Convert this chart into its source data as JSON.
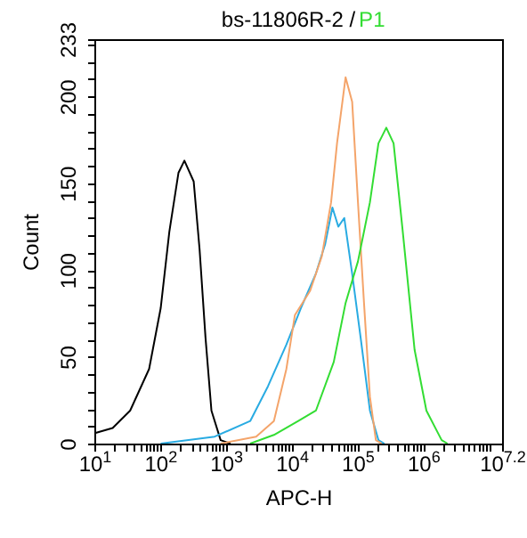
{
  "chart_data": {
    "type": "line",
    "title": "bs-11806R-2 /",
    "xlabel": "APC-H",
    "ylabel": "Count",
    "log": "x",
    "grid": false,
    "legend": false,
    "marker": "none",
    "line_style": "solid",
    "xlim": [
      10,
      15848932
    ],
    "ylim": [
      0,
      233
    ],
    "xticks": [
      {
        "value": 10,
        "label": "10$^{1}$"
      },
      {
        "value": 20,
        "label": null
      },
      {
        "value": 30,
        "label": null
      },
      {
        "value": 40,
        "label": null
      },
      {
        "value": 50,
        "label": null
      },
      {
        "value": 60,
        "label": null
      },
      {
        "value": 70,
        "label": null
      },
      {
        "value": 80,
        "label": null
      },
      {
        "value": 90,
        "label": null
      },
      {
        "value": 100,
        "label": "10$^{2}$"
      },
      {
        "value": 200,
        "label": null
      },
      {
        "value": 300,
        "label": null
      },
      {
        "value": 400,
        "label": null
      },
      {
        "value": 500,
        "label": null
      },
      {
        "value": 600,
        "label": null
      },
      {
        "value": 700,
        "label": null
      },
      {
        "value": 800,
        "label": null
      },
      {
        "value": 900,
        "label": null
      },
      {
        "value": 1000,
        "label": "10$^{3}$"
      },
      {
        "value": 2000,
        "label": null
      },
      {
        "value": 3000,
        "label": null
      },
      {
        "value": 4000,
        "label": null
      },
      {
        "value": 5000,
        "label": null
      },
      {
        "value": 6000,
        "label": null
      },
      {
        "value": 7000,
        "label": null
      },
      {
        "value": 8000,
        "label": null
      },
      {
        "value": 9000,
        "label": null
      },
      {
        "value": 10000,
        "label": "10$^{4}$"
      },
      {
        "value": 20000,
        "label": null
      },
      {
        "value": 30000,
        "label": null
      },
      {
        "value": 40000,
        "label": null
      },
      {
        "value": 50000,
        "label": null
      },
      {
        "value": 60000,
        "label": null
      },
      {
        "value": 70000,
        "label": null
      },
      {
        "value": 80000,
        "label": null
      },
      {
        "value": 90000,
        "label": null
      },
      {
        "value": 100000,
        "label": "10$^{5}$"
      },
      {
        "value": 200000,
        "label": null
      },
      {
        "value": 300000,
        "label": null
      },
      {
        "value": 400000,
        "label": null
      },
      {
        "value": 500000,
        "label": null
      },
      {
        "value": 600000,
        "label": null
      },
      {
        "value": 700000,
        "label": null
      },
      {
        "value": 800000,
        "label": null
      },
      {
        "value": 900000,
        "label": null
      },
      {
        "value": 1000000,
        "label": "10$^{6}$"
      },
      {
        "value": 2000000,
        "label": null
      },
      {
        "value": 3000000,
        "label": null
      },
      {
        "value": 4000000,
        "label": null
      },
      {
        "value": 5000000,
        "label": null
      },
      {
        "value": 6000000,
        "label": null
      },
      {
        "value": 7000000,
        "label": null
      },
      {
        "value": 8000000,
        "label": null
      },
      {
        "value": 9000000,
        "label": null
      },
      {
        "value": 10000000,
        "label": null
      },
      {
        "value": 15848932,
        "label": "10$^{7.2}$"
      }
    ],
    "yticks": [
      0,
      {
        "value": 10,
        "label": null
      },
      {
        "value": 20,
        "label": null
      },
      {
        "value": 30,
        "label": null
      },
      {
        "value": 40,
        "label": null
      },
      50,
      {
        "value": 60,
        "label": null
      },
      {
        "value": 70,
        "label": null
      },
      {
        "value": 80,
        "label": null
      },
      {
        "value": 90,
        "label": null
      },
      100,
      {
        "value": 110,
        "label": null
      },
      {
        "value": 120,
        "label": null
      },
      {
        "value": 130,
        "label": null
      },
      {
        "value": 140,
        "label": null
      },
      150,
      {
        "value": 160,
        "label": null
      },
      {
        "value": 170,
        "label": null
      },
      {
        "value": 180,
        "label": null
      },
      {
        "value": 190,
        "label": null
      },
      200,
      {
        "value": 210,
        "label": null
      },
      {
        "value": 220,
        "label": null
      },
      {
        "value": 230,
        "label": null
      },
      233
    ],
    "series": [
      {
        "color": "#000000",
        "x": [
          10.2,
          19,
          35,
          68,
          102,
          138,
          190,
          234,
          324,
          398,
          490,
          603,
          832,
          1175
        ],
        "values": [
          6,
          9,
          19,
          43,
          78,
          122,
          156,
          163,
          151,
          112,
          61,
          19,
          2,
          0
        ]
      },
      {
        "color": "#29abe2",
        "x": [
          102,
          676,
          2344,
          4365,
          8318,
          13800,
          23400,
          32400,
          41700,
          51300,
          63100,
          83200,
          112000,
          155000,
          209000,
          257000
        ],
        "values": [
          0,
          4,
          13,
          33,
          57,
          78,
          98,
          115,
          136,
          125,
          130,
          98,
          61,
          19,
          2,
          0
        ]
      },
      {
        "color": "#f4a46a",
        "x": [
          832,
          2884,
          5370,
          8318,
          11200,
          19100,
          28800,
          39800,
          49000,
          66100,
          83200,
          102000,
          126000,
          155000,
          191000,
          234000
        ],
        "values": [
          0,
          4,
          13,
          43,
          74,
          88,
          108,
          139,
          173,
          211,
          197,
          139,
          81,
          27,
          2,
          0
        ]
      },
      {
        "name": "P1",
        "color": "#33dd33",
        "x": [
          2344,
          5370,
          12600,
          23400,
          43700,
          66100,
          102000,
          155000,
          209000,
          275000,
          355000,
          490000,
          741000,
          1120000,
          1910000,
          2340000
        ],
        "values": [
          0,
          5,
          13,
          19,
          47,
          81,
          105,
          139,
          173,
          182,
          173,
          122,
          54,
          19,
          2,
          0
        ]
      }
    ]
  }
}
